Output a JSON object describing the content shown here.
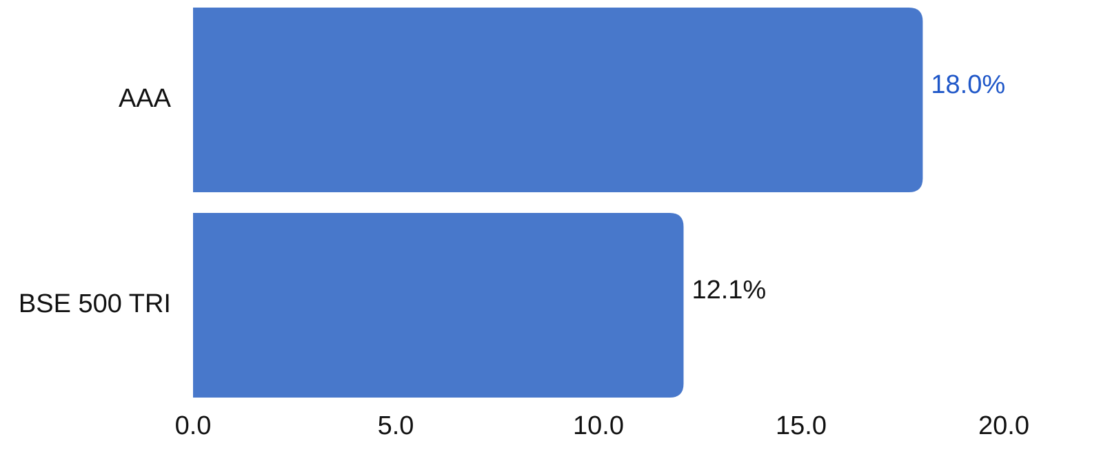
{
  "chart_data": {
    "type": "bar",
    "orientation": "horizontal",
    "categories": [
      "AAA",
      "BSE 500 TRI"
    ],
    "values": [
      18.0,
      12.1
    ],
    "data_labels": [
      "18.0%",
      "12.1%"
    ],
    "data_label_colors": [
      "#1f57c8",
      "#111111"
    ],
    "bar_color": "#4878cb",
    "xlim": [
      0,
      20
    ],
    "x_ticks": [
      0,
      5,
      10,
      15,
      20
    ],
    "x_tick_labels": [
      "0.0",
      "5.0",
      "10.0",
      "15.0",
      "20.0"
    ],
    "title": "",
    "xlabel": "",
    "ylabel": "",
    "grid": false,
    "legend": false
  }
}
